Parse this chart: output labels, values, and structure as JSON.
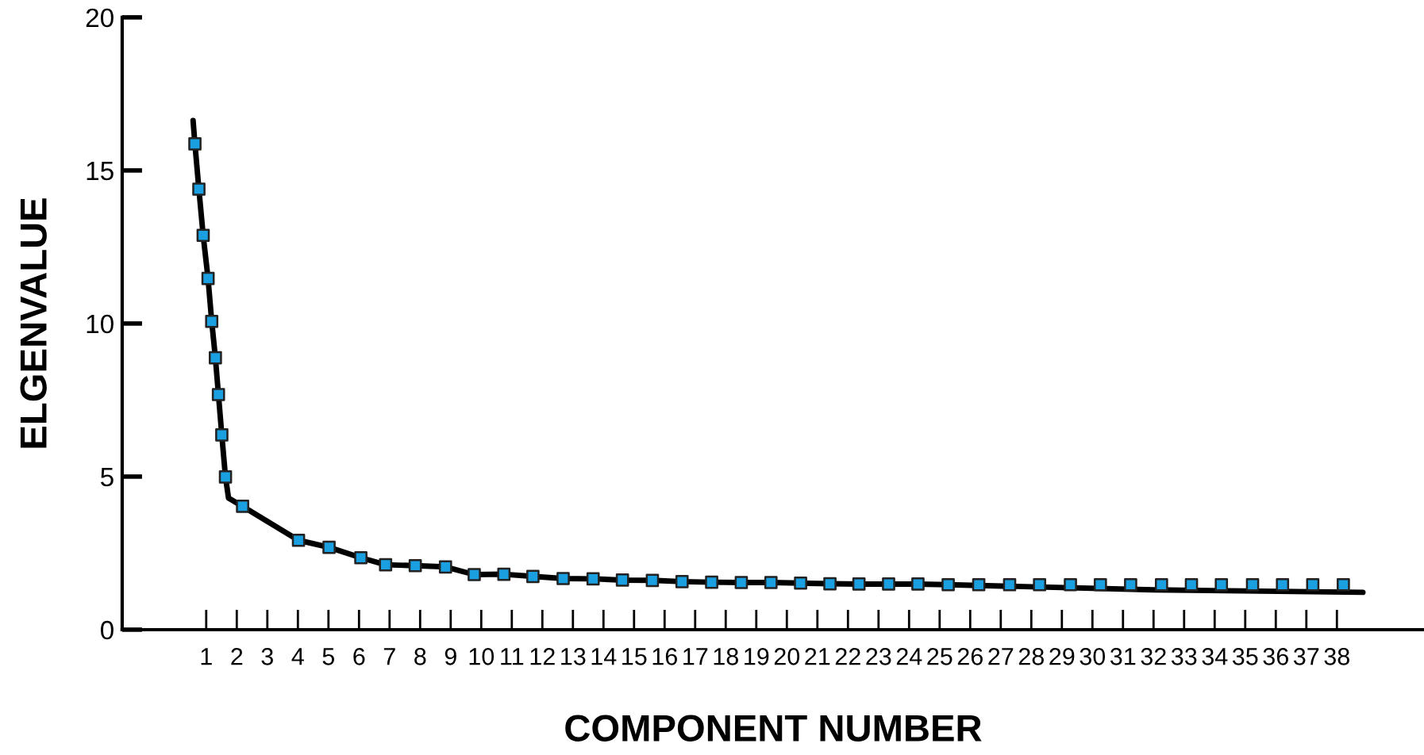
{
  "chart_data": {
    "type": "line",
    "xlabel": "COMPONENT NUMBER",
    "ylabel": "ELGENVALUE",
    "xlim": [
      -1.75,
      40.85
    ],
    "xticks": [
      1,
      2,
      3,
      4,
      5,
      6,
      7,
      8,
      9,
      10,
      11,
      12,
      13,
      14,
      15,
      16,
      17,
      18,
      19,
      20,
      21,
      22,
      23,
      24,
      25,
      26,
      27,
      28,
      29,
      30,
      31,
      32,
      33,
      34,
      35,
      36,
      37,
      38
    ],
    "ylim": [
      0,
      20
    ],
    "yticks": [
      0,
      5,
      10,
      15,
      20
    ],
    "grid": false,
    "legend": false,
    "series": [
      {
        "marker": "none",
        "color": "#000000",
        "x": [
          0.57,
          0.63,
          0.76,
          0.9,
          1.06,
          1.18,
          1.3,
          1.4,
          1.51,
          1.63,
          1.73,
          2.19,
          4.02,
          5.02,
          6.06,
          6.87,
          7.84,
          8.83,
          9.77,
          10.74,
          11.69,
          12.68,
          13.66,
          14.62,
          15.6,
          16.57,
          17.54,
          18.51,
          19.48,
          20.45,
          21.41,
          22.36,
          23.33,
          24.29,
          25.28,
          32.0,
          38.85
        ],
        "values": [
          16.63,
          15.87,
          14.39,
          12.88,
          11.47,
          10.07,
          8.88,
          7.68,
          6.36,
          4.99,
          4.3,
          4.03,
          2.92,
          2.69,
          2.35,
          2.12,
          2.09,
          2.05,
          1.8,
          1.81,
          1.74,
          1.67,
          1.66,
          1.62,
          1.61,
          1.57,
          1.55,
          1.54,
          1.54,
          1.52,
          1.5,
          1.49,
          1.49,
          1.49,
          1.47,
          1.3,
          1.22
        ]
      },
      {
        "type": "scatter",
        "marker": "square",
        "color": "#1a9fe0",
        "x": [
          0.63,
          0.76,
          0.9,
          1.06,
          1.18,
          1.3,
          1.4,
          1.51,
          1.63,
          2.19,
          4.02,
          5.02,
          6.06,
          6.87,
          7.84,
          8.83,
          9.77,
          10.74,
          11.69,
          12.68,
          13.66,
          14.62,
          15.6,
          16.57,
          17.54,
          18.51,
          19.48,
          20.45,
          21.41,
          22.36,
          23.33,
          24.29,
          25.28,
          26.28,
          27.29,
          28.27,
          29.28,
          30.26,
          31.25,
          32.26,
          33.24,
          34.22,
          35.24,
          36.22,
          37.21,
          38.21
        ],
        "values": [
          15.87,
          14.39,
          12.88,
          11.47,
          10.07,
          8.88,
          7.68,
          6.36,
          4.99,
          4.03,
          2.92,
          2.69,
          2.35,
          2.12,
          2.09,
          2.05,
          1.8,
          1.81,
          1.74,
          1.67,
          1.66,
          1.62,
          1.61,
          1.57,
          1.55,
          1.54,
          1.54,
          1.52,
          1.5,
          1.49,
          1.49,
          1.49,
          1.47,
          1.47,
          1.47,
          1.47,
          1.47,
          1.47,
          1.47,
          1.47,
          1.47,
          1.47,
          1.47,
          1.47,
          1.47,
          1.47
        ]
      }
    ]
  }
}
